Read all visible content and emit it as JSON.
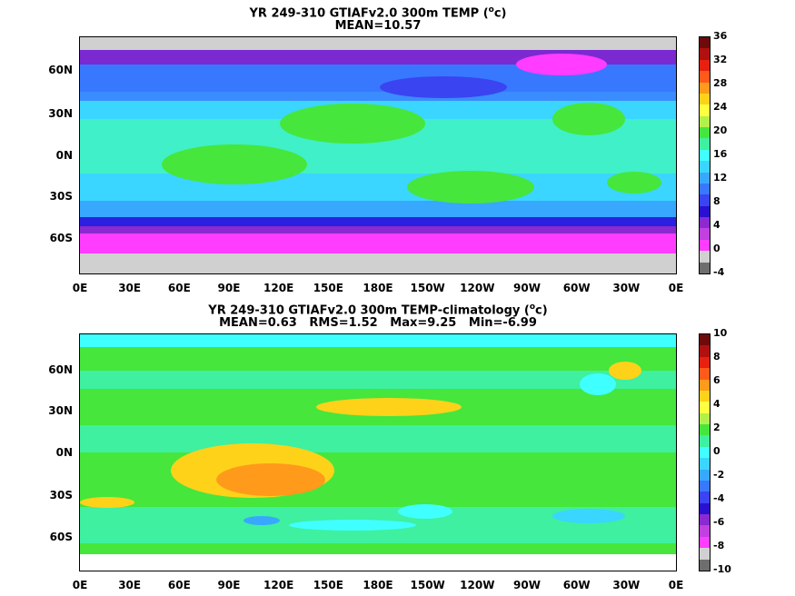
{
  "panels": [
    {
      "title_line1": "YR 249-310 GTIAFv2.0 300m TEMP (ᴼc)",
      "title_line2": "MEAN=10.57",
      "colorbar_labels": [
        "36",
        "32",
        "28",
        "24",
        "20",
        "16",
        "12",
        "8",
        "4",
        "0",
        "-4"
      ],
      "colorbar_colors": [
        "#6e0a0a",
        "#b01010",
        "#e82010",
        "#ff5a1a",
        "#ff9a1a",
        "#ffd21a",
        "#ffff40",
        "#b4f04a",
        "#46e63c",
        "#3ef0a0",
        "#40ffff",
        "#3ad6ff",
        "#38a8ff",
        "#3878ff",
        "#3a44f0",
        "#2a10d0",
        "#8a2ad0",
        "#c040e0",
        "#ff3cff",
        "#d0d0d0",
        "#6e6e6e"
      ]
    },
    {
      "title_line1": "YR 249-310 GTIAFv2.0 300m TEMP-climatology (ᴼc)",
      "title_line2": "MEAN=0.63   RMS=1.52   Max=9.25   Min=-6.99",
      "colorbar_labels": [
        "10",
        "8",
        "6",
        "4",
        "2",
        "0",
        "-2",
        "-4",
        "-6",
        "-8",
        "-10"
      ],
      "colorbar_colors": [
        "#6e0a0a",
        "#b01010",
        "#e82010",
        "#ff5a1a",
        "#ff9a1a",
        "#ffd21a",
        "#ffff40",
        "#b4f04a",
        "#46e63c",
        "#3ef0a0",
        "#40ffff",
        "#3ad6ff",
        "#38a8ff",
        "#3878ff",
        "#3a44f0",
        "#2a10d0",
        "#8a2ad0",
        "#c040e0",
        "#ff3cff",
        "#d0d0d0",
        "#6e6e6e"
      ]
    }
  ],
  "lat_labels": [
    "60N",
    "30N",
    "0N",
    "30S",
    "60S"
  ],
  "lon_labels": [
    "0E",
    "30E",
    "60E",
    "90E",
    "120E",
    "150E",
    "180E",
    "150W",
    "120W",
    "90W",
    "60W",
    "30W",
    "0E"
  ],
  "colors": {
    "land": "#ffffff",
    "ice": "#c8c8c8",
    "coast": "#000000"
  }
}
